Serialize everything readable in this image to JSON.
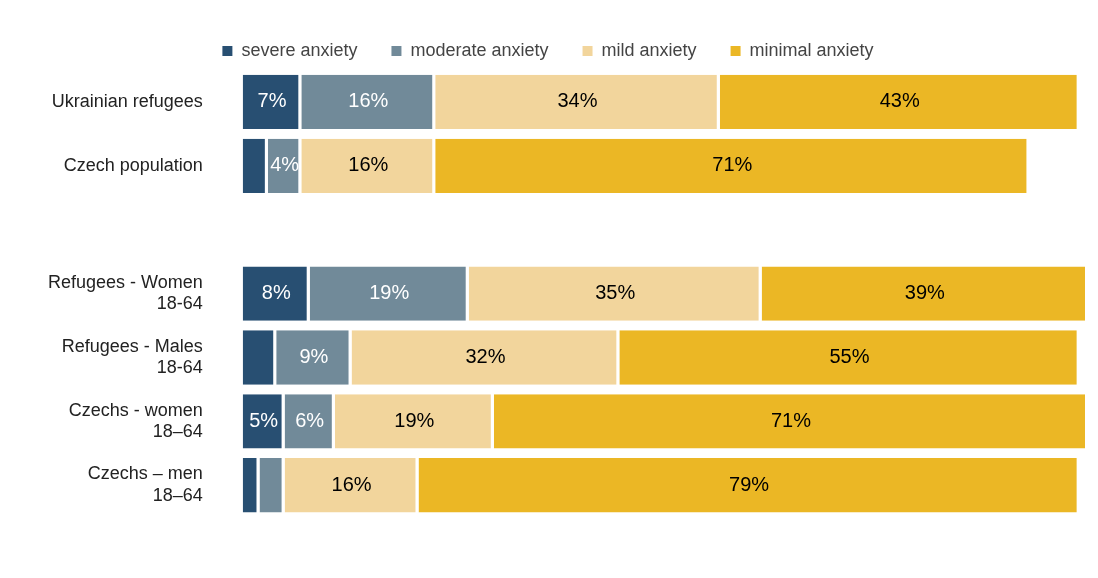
{
  "chart_data": {
    "type": "bar",
    "orientation": "horizontal",
    "stacked": true,
    "legend": "top",
    "grid": false,
    "tick_labels": "y",
    "categories": [
      "Ukrainian refugees",
      "Czech population",
      null,
      "Refugees - Women\n18-64",
      "Refugees - Males\n18-64",
      "Czechs - women\n18–64",
      "Czechs – men\n18–64"
    ],
    "series": [
      {
        "name": "severe anxiety",
        "color": "#284f72",
        "values": [
          7,
          3,
          null,
          8,
          4,
          5,
          2
        ],
        "value_labels": [
          "7%",
          null,
          null,
          "8%",
          null,
          "5%",
          null
        ]
      },
      {
        "name": "moderate anxiety",
        "color": "#718a99",
        "values": [
          16,
          4,
          null,
          19,
          9,
          6,
          3
        ],
        "value_labels": [
          "16%",
          "4%",
          null,
          "19%",
          "9%",
          "6%",
          null
        ]
      },
      {
        "name": "mild anxiety",
        "color": "#f2d59c",
        "values": [
          34,
          16,
          null,
          35,
          32,
          19,
          16
        ],
        "value_labels": [
          "34%",
          "16%",
          null,
          "35%",
          "32%",
          "19%",
          "16%"
        ]
      },
      {
        "name": "minimal anxiety",
        "color": "#ebb725",
        "values": [
          43,
          71,
          null,
          39,
          55,
          71,
          79
        ],
        "value_labels": [
          "43%",
          "71%",
          null,
          "39%",
          "55%",
          "71%",
          "79%"
        ]
      }
    ]
  }
}
